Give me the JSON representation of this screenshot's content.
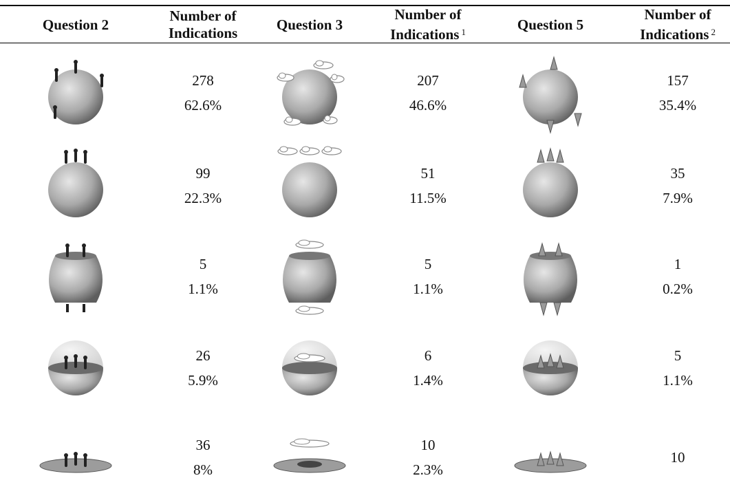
{
  "table": {
    "headers": [
      {
        "label": "Question 2"
      },
      {
        "label": "Number of Indications"
      },
      {
        "label": "Question 3"
      },
      {
        "label": "Number of Indications",
        "note": "1"
      },
      {
        "label": "Question 5"
      },
      {
        "label": "Number of Indications",
        "note": "2"
      }
    ],
    "rows": [
      {
        "cells": [
          {
            "count": "278",
            "percent": "62.6%"
          },
          {
            "count": "207",
            "percent": "46.6%"
          },
          {
            "count": "157",
            "percent": "35.4%"
          }
        ]
      },
      {
        "cells": [
          {
            "count": "99",
            "percent": "22.3%"
          },
          {
            "count": "51",
            "percent": "11.5%"
          },
          {
            "count": "35",
            "percent": "7.9%"
          }
        ]
      },
      {
        "cells": [
          {
            "count": "5",
            "percent": "1.1%"
          },
          {
            "count": "5",
            "percent": "1.1%"
          },
          {
            "count": "1",
            "percent": "0.2%"
          }
        ]
      },
      {
        "cells": [
          {
            "count": "26",
            "percent": "5.9%"
          },
          {
            "count": "6",
            "percent": "1.4%"
          },
          {
            "count": "5",
            "percent": "1.1%"
          }
        ]
      },
      {
        "cells": [
          {
            "count": "36",
            "percent": "8%"
          },
          {
            "count": "10",
            "percent": "2.3%"
          },
          {
            "count": "10"
          }
        ]
      }
    ]
  }
}
